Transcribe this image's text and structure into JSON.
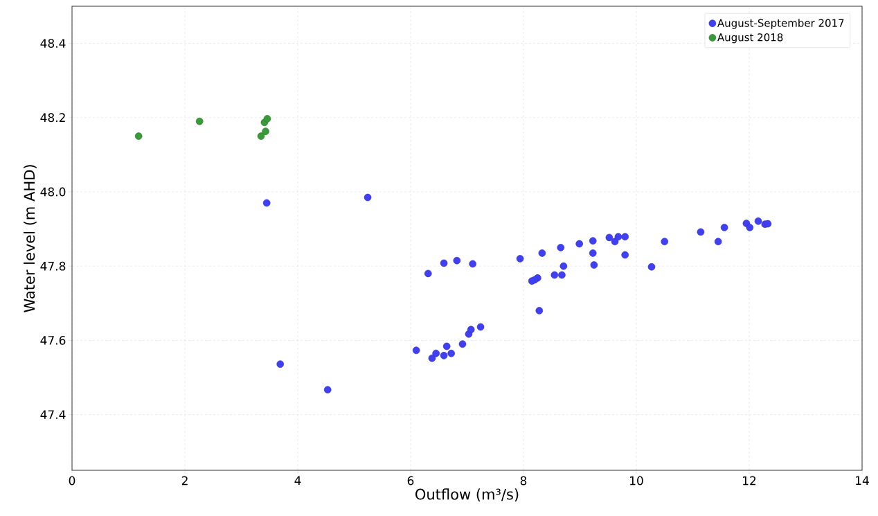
{
  "chart_data": {
    "type": "scatter",
    "xlabel": "Outflow (m³/s)",
    "ylabel": "Water level (m AHD)",
    "xlim": [
      0,
      14
    ],
    "ylim": [
      47.25,
      48.5
    ],
    "xticks": [
      0,
      2,
      4,
      6,
      8,
      10,
      12,
      14
    ],
    "yticks": [
      {
        "value": 47.4,
        "label": "47.4"
      },
      {
        "value": 47.6,
        "label": "47.6"
      },
      {
        "value": 47.8,
        "label": "47.8"
      },
      {
        "value": 48.0,
        "label": "48.0"
      },
      {
        "value": 48.2,
        "label": "48.2"
      },
      {
        "value": 48.4,
        "label": "48.4"
      }
    ],
    "grid": true,
    "legend": "top right",
    "marker": "circle",
    "series": [
      {
        "name": "August-September 2017",
        "color": "#4040f2",
        "x": [
          3.45,
          5.24,
          3.69,
          4.53,
          6.31,
          6.59,
          6.82,
          7.1,
          7.94,
          8.33,
          8.66,
          8.99,
          9.23,
          9.23,
          9.25,
          8.71,
          8.68,
          8.55,
          8.25,
          8.2,
          8.15,
          8.28,
          9.52,
          9.62,
          9.68,
          9.8,
          9.8,
          10.27,
          10.5,
          11.14,
          11.45,
          11.56,
          11.95,
          12.01,
          12.16,
          12.28,
          12.33,
          6.1,
          6.38,
          6.45,
          6.59,
          6.64,
          6.72,
          6.92,
          7.03,
          7.07,
          7.24
        ],
        "values": [
          47.97,
          47.985,
          47.536,
          47.467,
          47.78,
          47.808,
          47.815,
          47.806,
          47.82,
          47.835,
          47.85,
          47.86,
          47.868,
          47.835,
          47.803,
          47.8,
          47.776,
          47.776,
          47.768,
          47.763,
          47.76,
          47.68,
          47.877,
          47.866,
          47.879,
          47.879,
          47.83,
          47.798,
          47.866,
          47.892,
          47.866,
          47.904,
          47.915,
          47.904,
          47.921,
          47.913,
          47.914,
          47.573,
          47.552,
          47.565,
          47.559,
          47.584,
          47.565,
          47.59,
          47.617,
          47.629,
          47.636
        ]
      },
      {
        "name": "August 2018",
        "color": "#3a9a3a",
        "x": [
          1.18,
          2.26,
          3.35,
          3.43,
          3.41,
          3.45,
          3.46
        ],
        "values": [
          48.15,
          48.19,
          48.15,
          48.163,
          48.187,
          null,
          48.197
        ]
      }
    ]
  }
}
